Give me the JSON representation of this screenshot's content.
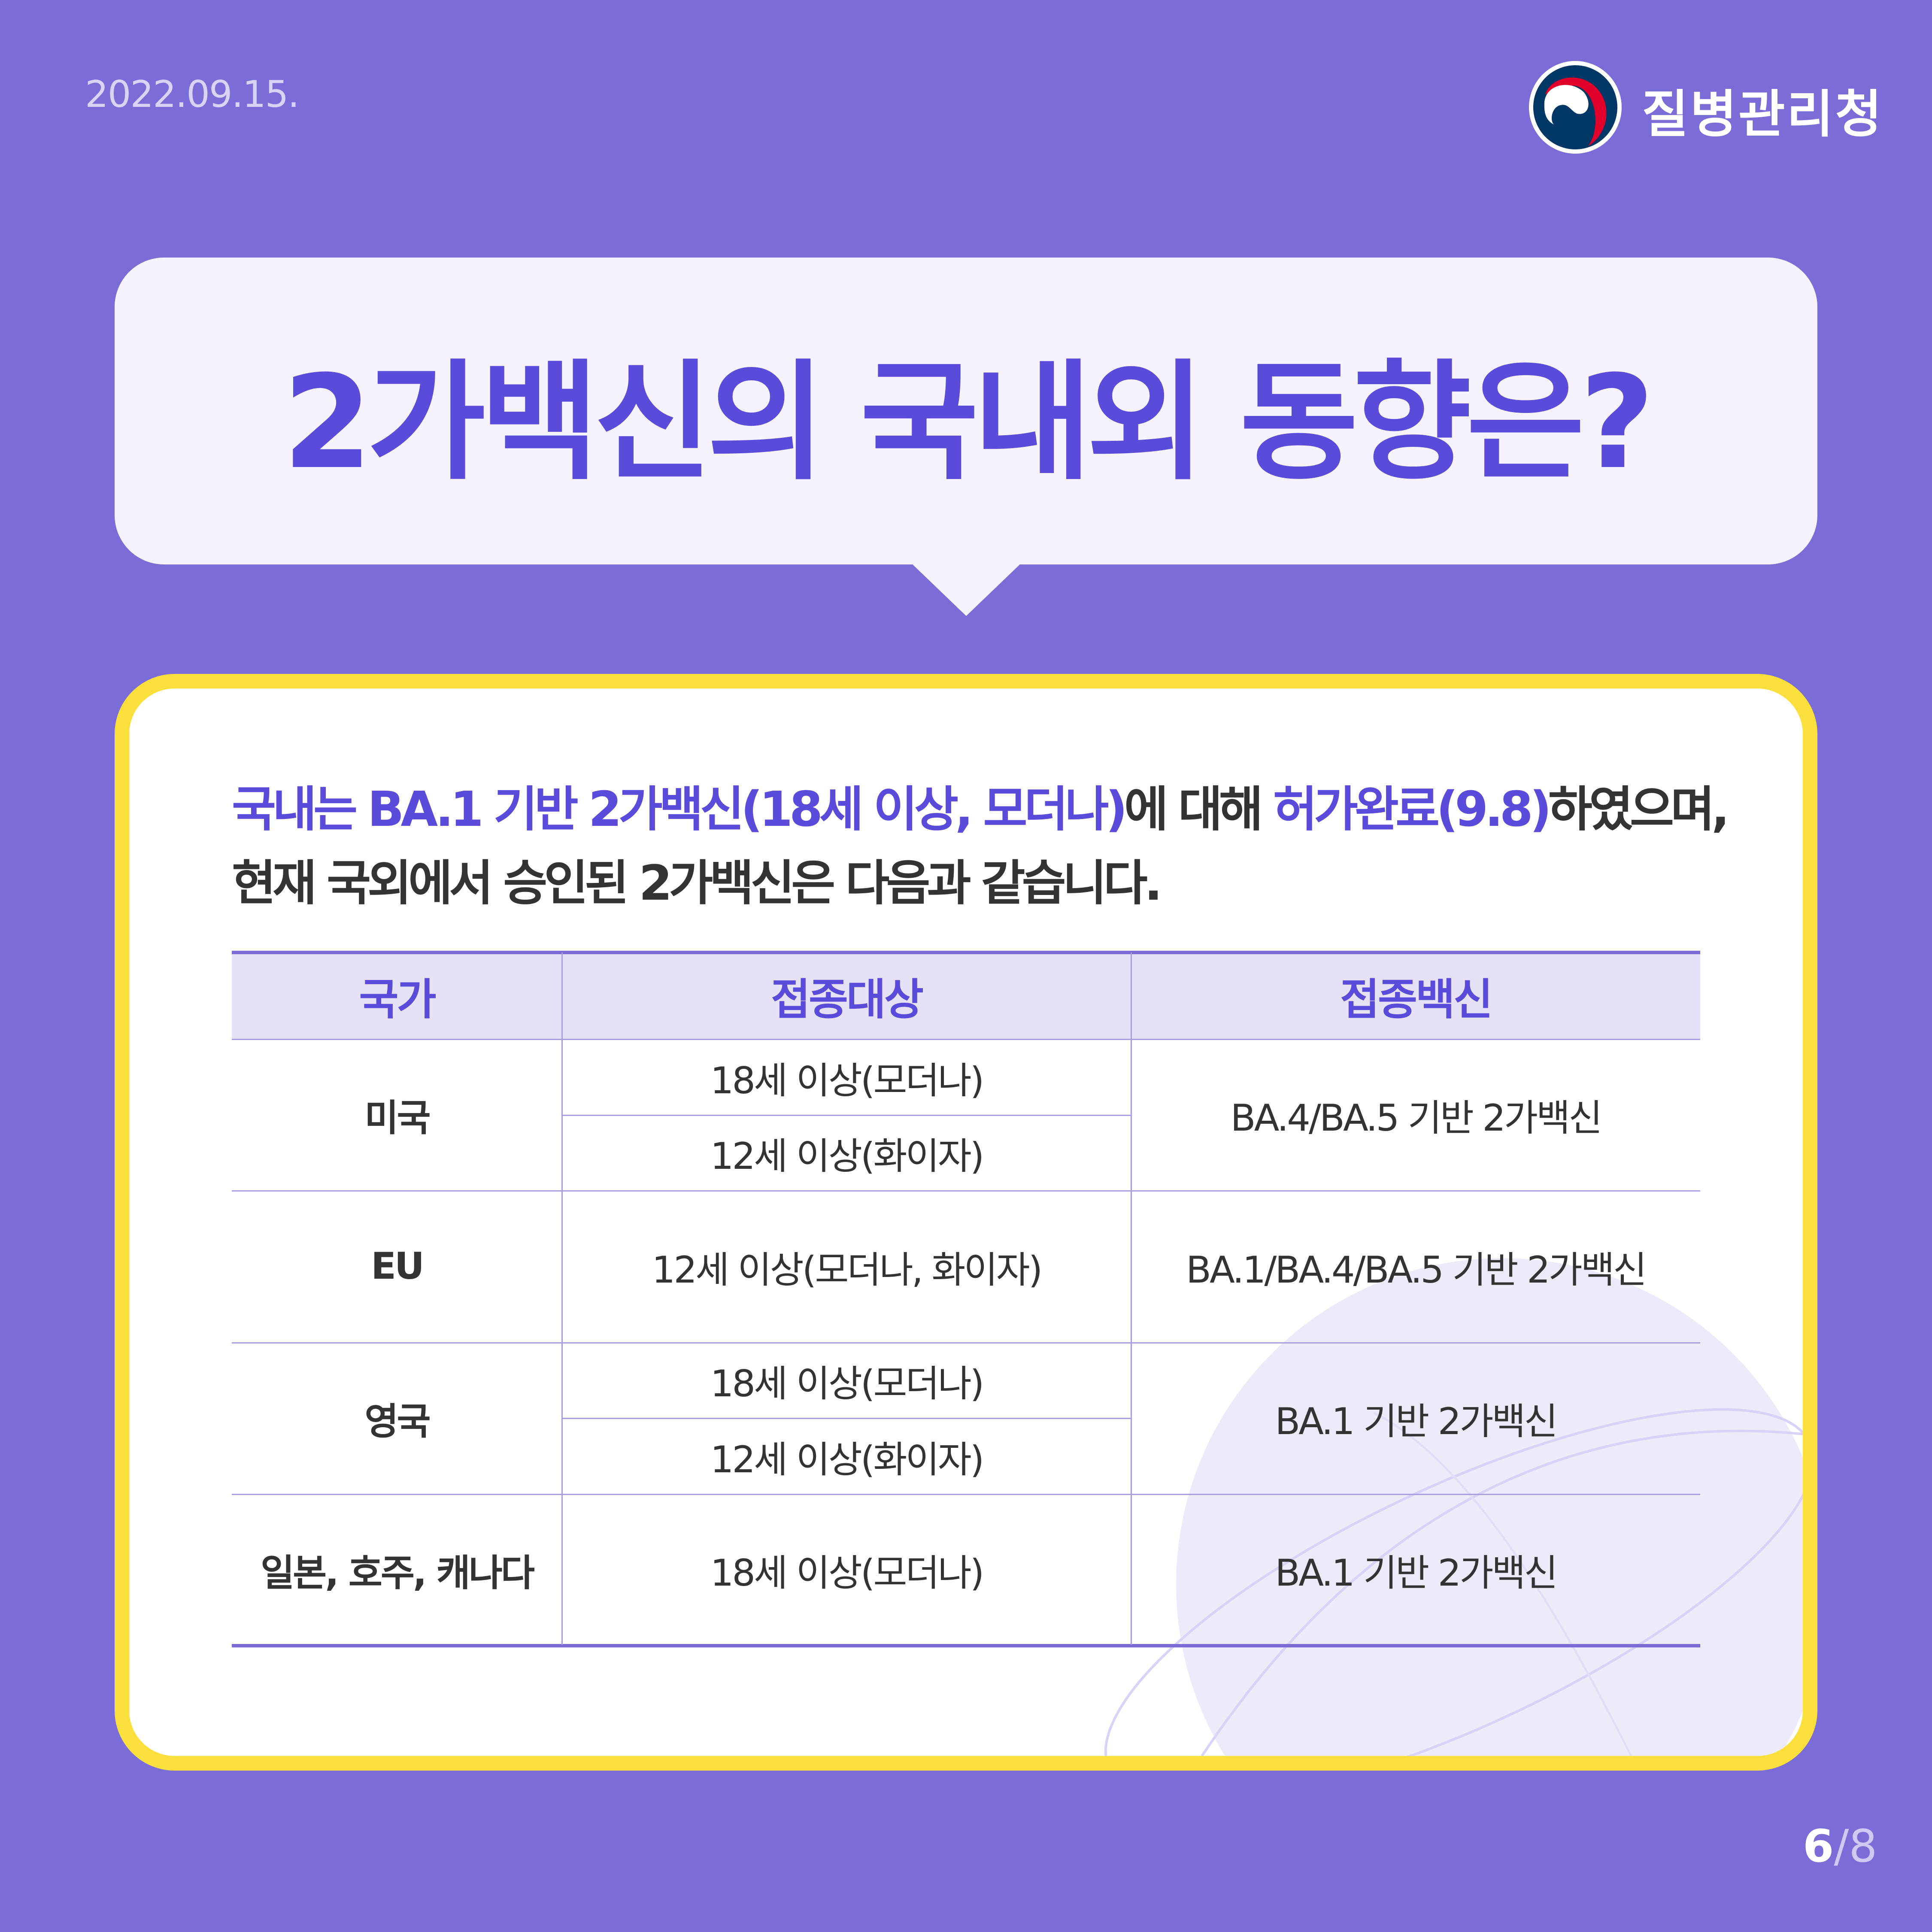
{
  "header": {
    "date": "2022.09.15.",
    "org_name": "질병관리청"
  },
  "title": "2가백신의 국내외 동향은?",
  "intro": {
    "l1_a": "국내는 BA.1 기반 2가백신(18세 이상, 모더나)",
    "l1_b": "에 대해 ",
    "l1_c": "허가완료(9.8)",
    "l1_d": "하였으며,",
    "l2": "현재 국외에서 승인된 2가백신은 다음과 같습니다."
  },
  "table": {
    "headers": [
      "국가",
      "접종대상",
      "접종백신"
    ],
    "rows": [
      {
        "country": "미국",
        "targets": [
          "18세 이상(모더나)",
          "12세 이상(화이자)"
        ],
        "vaccine": "BA.4/BA.5 기반 2가백신"
      },
      {
        "country": "EU",
        "targets": [
          "12세 이상(모더나, 화이자)"
        ],
        "vaccine": "BA.1/BA.4/BA.5 기반 2가백신"
      },
      {
        "country": "영국",
        "targets": [
          "18세 이상(모더나)",
          "12세 이상(화이자)"
        ],
        "vaccine": "BA.1 기반 2가백신"
      },
      {
        "country": "일본, 호주, 캐나다",
        "targets": [
          "18세 이상(모더나)"
        ],
        "vaccine": "BA.1 기반 2가백신"
      }
    ]
  },
  "pagination": {
    "current": "6",
    "total": "/8"
  },
  "colors": {
    "background": "#7a6dd8",
    "accent": "#5b4bdb",
    "frame": "#fbdf3c",
    "header_fill": "#e5e2f7"
  }
}
